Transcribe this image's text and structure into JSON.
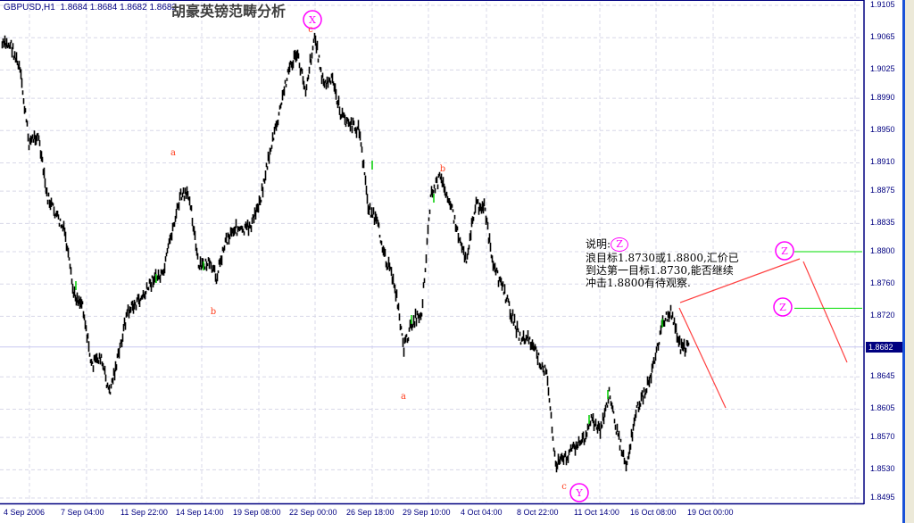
{
  "header": {
    "symbol": "GBPUSD,H1",
    "ohlc": "1.8684 1.8684 1.8682 1.8682",
    "title": "胡豪英镑范畴分析"
  },
  "note": {
    "line1_prefix": "说明:",
    "line1_badge": "Z",
    "line2": "浪目标1.8730或1.8800,汇价已",
    "line3": "到达第一目标1.8730,能否继续",
    "line4": "冲击1.8800有待观察."
  },
  "chart_data": {
    "type": "line",
    "title": "",
    "symbol": "GBPUSD",
    "timeframe": "H1",
    "ylim": [
      1.8495,
      1.9105
    ],
    "grid": true,
    "y_ticks": [
      "1.9105",
      "1.9065",
      "1.9025",
      "1.8990",
      "1.8950",
      "1.8910",
      "1.8875",
      "1.8835",
      "1.8800",
      "1.8760",
      "1.8720",
      "1.8645",
      "1.8605",
      "1.8570",
      "1.8530",
      "1.8495"
    ],
    "x_ticks": [
      "4 Sep 2006",
      "7 Sep 04:00",
      "11 Sep 22:00",
      "14 Sep 14:00",
      "19 Sep 08:00",
      "22 Sep 00:00",
      "26 Sep 18:00",
      "29 Sep 10:00",
      "4 Oct 04:00",
      "8 Oct 22:00",
      "11 Oct 14:00",
      "16 Oct 08:00",
      "19 Oct 00:00"
    ],
    "current_price": "1.8682",
    "series": [
      {
        "values": [
          1.9056,
          1.9056,
          1.9023,
          1.8935,
          1.8946,
          1.8869,
          1.8846,
          1.8824,
          1.8747,
          1.8736,
          1.8659,
          1.867,
          1.8625,
          1.867,
          1.8725,
          1.8736,
          1.8747,
          1.8769,
          1.8769,
          1.8824,
          1.8869,
          1.8869,
          1.878,
          1.8786,
          1.8769,
          1.8813,
          1.883,
          1.8824,
          1.8835,
          1.8869,
          1.8924,
          1.8968,
          1.9023,
          1.9045,
          1.9001,
          1.9067,
          1.9007,
          1.9012,
          1.8968,
          1.8957,
          1.8951,
          1.8857,
          1.8835,
          1.8791,
          1.8758,
          1.8681,
          1.8714,
          1.8725,
          1.8869,
          1.8891,
          1.8869,
          1.8824,
          1.8791,
          1.8857,
          1.8857,
          1.878,
          1.8758,
          1.8725,
          1.8692,
          1.8692,
          1.867,
          1.8648,
          1.8537,
          1.8543,
          1.8559,
          1.8565,
          1.8592,
          1.8576,
          1.8625,
          1.857,
          1.8537,
          1.8603,
          1.8625,
          1.8659,
          1.8714,
          1.8725,
          1.8681,
          1.8682
        ]
      }
    ],
    "wave_labels": [
      {
        "text": "X",
        "circled": true,
        "price": 1.9095,
        "at": "22 Sep 00:00"
      },
      {
        "text": "c",
        "circled": false,
        "price": 1.9073,
        "at": "22 Sep 00:00"
      },
      {
        "text": "a",
        "circled": false,
        "price": 1.8915,
        "at": "14 Sep 14:00"
      },
      {
        "text": "b",
        "circled": false,
        "price": 1.8735,
        "at": "14 Sep 14:00"
      },
      {
        "text": "b",
        "circled": false,
        "price": 1.89,
        "at": "4 Oct 04:00"
      },
      {
        "text": "a",
        "circled": false,
        "price": 1.8622,
        "at": "29 Sep 10:00"
      },
      {
        "text": "c",
        "circled": false,
        "price": 1.851,
        "at": "8 Oct 22:00"
      },
      {
        "text": "Y",
        "circled": true,
        "price": 1.8505,
        "at": "11 Oct 14:00"
      },
      {
        "text": "Z",
        "circled": true,
        "price": 1.8805,
        "at": "projection"
      },
      {
        "text": "Z",
        "circled": true,
        "price": 1.8735,
        "at": "projection"
      }
    ],
    "target_levels": [
      1.88,
      1.873
    ],
    "colors": {
      "price": "#000000",
      "up_bar": "#00cc00",
      "projection": "#ff4040",
      "target": "#00dd00",
      "wave": "#ff00ff",
      "minor_wave": "#ff4020",
      "axis": "#000080",
      "grid": "#d8d8e8"
    }
  }
}
